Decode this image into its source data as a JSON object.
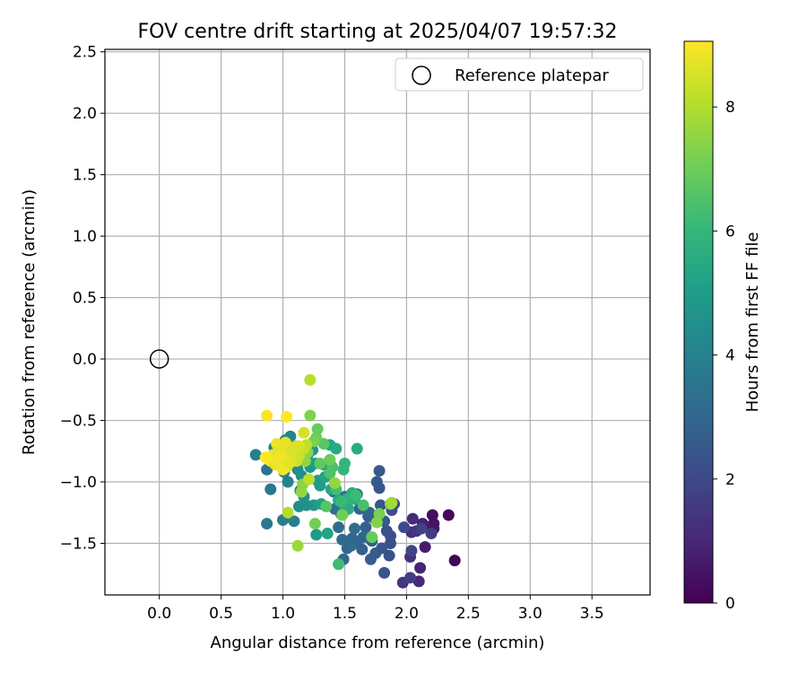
{
  "chart_data": {
    "type": "scatter",
    "title": "FOV centre drift starting at 2025/04/07 19:57:32",
    "xlabel": "Angular distance from reference (arcmin)",
    "ylabel": "Rotation from reference (arcmin)",
    "xlim": [
      -0.44,
      3.97
    ],
    "ylim": [
      -1.92,
      2.52
    ],
    "xticks": [
      0.0,
      0.5,
      1.0,
      1.5,
      2.0,
      2.5,
      3.0,
      3.5
    ],
    "yticks": [
      -1.5,
      -1.0,
      -0.5,
      0.0,
      0.5,
      1.0,
      1.5,
      2.0,
      2.5
    ],
    "xtick_labels": [
      "0.0",
      "0.5",
      "1.0",
      "1.5",
      "2.0",
      "2.5",
      "3.0",
      "3.5"
    ],
    "ytick_labels": [
      "−1.5",
      "−1.0",
      "−0.5",
      "0.0",
      "0.5",
      "1.0",
      "1.5",
      "2.0",
      "2.5"
    ],
    "grid": true,
    "legend": {
      "position": "upper-right",
      "entries": [
        "Reference platepar"
      ]
    },
    "reference_point": {
      "x": 0.0,
      "y": 0.0,
      "label": "Reference platepar"
    },
    "colorbar": {
      "label": "Hours from first FF file",
      "min": 0,
      "max": 9.06,
      "ticks": [
        0,
        2,
        4,
        6,
        8
      ],
      "tick_labels": [
        "0",
        "2",
        "4",
        "6",
        "8"
      ],
      "colormap": "viridis"
    },
    "colormap_stops": [
      "#440154",
      "#482878",
      "#3e4989",
      "#31688e",
      "#26828e",
      "#1f9e89",
      "#35b779",
      "#6ece58",
      "#b5de2b",
      "#fde725"
    ],
    "series": [
      {
        "x": [
          2.39,
          2.34,
          2.21,
          2.22,
          2.22,
          2.15,
          2.15,
          2.13,
          2.11,
          2.1,
          2.05,
          2.04,
          2.03,
          1.97,
          2.08,
          2.2,
          2.03,
          2.12,
          2.04,
          1.98
        ],
        "y": [
          -1.64,
          -1.27,
          -1.27,
          -1.34,
          -1.38,
          -1.36,
          -1.53,
          -1.34,
          -1.7,
          -1.81,
          -1.3,
          -1.41,
          -1.61,
          -1.82,
          -1.4,
          -1.42,
          -1.78,
          -1.38,
          -1.56,
          -1.37
        ],
        "c": [
          0.1,
          0.2,
          0.3,
          0.4,
          0.5,
          0.6,
          0.7,
          0.8,
          0.9,
          1.0,
          1.1,
          1.2,
          1.3,
          1.4,
          1.5,
          1.6,
          1.7,
          1.8,
          1.9,
          2.0
        ]
      },
      {
        "x": [
          1.9,
          1.88,
          1.87,
          1.87,
          1.86,
          1.82,
          1.8,
          1.79,
          1.78,
          1.76,
          1.75,
          1.71,
          1.69,
          1.67,
          1.64,
          1.62,
          1.6,
          1.56,
          1.52,
          1.49,
          1.48,
          1.47,
          1.45,
          1.42,
          1.41,
          1.78,
          1.82,
          1.74,
          1.65,
          1.58,
          1.5,
          1.84,
          1.72,
          1.55,
          1.6,
          1.7
        ],
        "y": [
          -1.18,
          -1.23,
          -1.44,
          -1.5,
          -1.6,
          -1.74,
          -1.54,
          -1.19,
          -0.91,
          -1.0,
          -1.58,
          -1.63,
          -1.28,
          -1.37,
          -1.55,
          -1.22,
          -1.5,
          -1.46,
          -1.54,
          -1.63,
          -1.47,
          -1.26,
          -1.37,
          -1.22,
          -1.08,
          -1.05,
          -1.32,
          -1.3,
          -1.45,
          -1.38,
          -1.12,
          -1.4,
          -1.48,
          -1.52,
          -1.1,
          -1.25
        ],
        "c": [
          2.1,
          2.15,
          2.2,
          2.25,
          2.3,
          2.35,
          2.4,
          2.45,
          2.5,
          2.55,
          2.6,
          2.65,
          2.7,
          2.75,
          2.8,
          2.85,
          2.9,
          2.95,
          3.0,
          3.05,
          3.1,
          3.15,
          3.2,
          3.25,
          3.3,
          2.4,
          2.6,
          2.8,
          3.0,
          3.2,
          3.4,
          2.3,
          2.7,
          3.1,
          3.35,
          2.9
        ]
      },
      {
        "x": [
          0.87,
          0.9,
          0.93,
          0.97,
          1.01,
          1.04,
          1.07,
          1.1,
          1.12,
          1.15,
          1.17,
          1.2,
          1.22,
          1.25,
          1.27,
          1.3,
          1.33,
          1.36,
          0.78,
          0.87,
          1.02,
          1.09,
          1.14,
          1.19,
          1.24,
          1.28,
          1.31,
          1.34,
          1.39,
          1.45,
          1.49,
          1.53,
          1.58,
          1.0,
          1.06,
          1.13,
          1.18,
          1.26,
          1.38,
          1.43
        ],
        "y": [
          -0.9,
          -1.06,
          -0.72,
          -0.81,
          -0.92,
          -1.0,
          -0.73,
          -0.77,
          -0.9,
          -0.95,
          -1.12,
          -0.78,
          -0.88,
          -1.19,
          -1.43,
          -1.03,
          -0.86,
          -1.42,
          -0.78,
          -1.34,
          -0.66,
          -1.32,
          -1.07,
          -1.19,
          -0.74,
          -0.99,
          -1.18,
          -0.96,
          -1.06,
          -1.15,
          -1.25,
          -1.22,
          -1.14,
          -1.31,
          -0.63,
          -1.2,
          -0.82,
          -0.85,
          -0.7,
          -0.73
        ],
        "c": [
          3.5,
          3.6,
          3.7,
          3.8,
          3.9,
          4.0,
          4.1,
          4.2,
          4.3,
          4.4,
          4.5,
          4.6,
          4.7,
          4.8,
          4.9,
          5.0,
          5.1,
          5.2,
          3.9,
          3.6,
          4.05,
          3.95,
          4.35,
          4.55,
          4.75,
          4.95,
          5.15,
          5.25,
          5.35,
          5.45,
          5.55,
          5.65,
          5.75,
          3.85,
          4.15,
          4.45,
          4.65,
          5.05,
          5.3,
          5.5
        ]
      },
      {
        "x": [
          1.6,
          1.56,
          1.52,
          1.5,
          1.49,
          1.47,
          1.45,
          1.43,
          1.4,
          1.38,
          1.35,
          1.33,
          1.3,
          1.28,
          1.27,
          1.26,
          1.25,
          1.22,
          1.2,
          1.18,
          1.15,
          1.12,
          1.1,
          1.07,
          1.04,
          1.78,
          1.76,
          1.72,
          1.87,
          1.88,
          1.59,
          1.65,
          1.38,
          1.42,
          1.48,
          1.16
        ],
        "y": [
          -0.73,
          -1.09,
          -1.14,
          -0.85,
          -0.9,
          -1.16,
          -1.67,
          -1.06,
          -0.88,
          -0.93,
          -1.2,
          -0.69,
          -0.85,
          -0.57,
          -0.64,
          -1.34,
          -0.67,
          -0.46,
          -0.76,
          -0.83,
          -1.08,
          -1.52,
          -0.71,
          -0.79,
          -1.25,
          -1.26,
          -1.33,
          -1.45,
          -1.18,
          -1.17,
          -1.11,
          -1.19,
          -0.82,
          -1.01,
          -1.27,
          -1.02
        ],
        "c": [
          5.6,
          5.7,
          5.8,
          5.9,
          6.0,
          6.1,
          6.2,
          6.3,
          6.4,
          6.5,
          6.6,
          6.7,
          6.8,
          6.9,
          7.0,
          7.1,
          7.2,
          7.3,
          7.4,
          7.5,
          7.6,
          7.7,
          7.8,
          7.9,
          8.0,
          7.2,
          7.35,
          6.9,
          7.5,
          7.8,
          6.15,
          6.4,
          6.95,
          7.6,
          7.05,
          7.45
        ]
      },
      {
        "x": [
          1.22,
          1.21,
          1.19,
          1.17,
          1.15,
          1.13,
          1.11,
          1.09,
          1.07,
          1.05,
          1.03,
          1.01,
          0.99,
          0.97,
          0.95,
          0.92,
          0.9,
          0.88,
          0.87,
          0.86,
          1.17,
          1.1,
          1.03,
          0.96,
          0.94,
          1.0,
          1.06,
          1.13,
          1.02,
          0.98
        ],
        "y": [
          -0.17,
          -0.98,
          -0.7,
          -0.73,
          -0.74,
          -0.79,
          -0.83,
          -0.78,
          -0.76,
          -0.85,
          -0.88,
          -0.8,
          -0.73,
          -0.82,
          -0.69,
          -0.78,
          -0.83,
          -0.81,
          -0.46,
          -0.8,
          -0.6,
          -0.72,
          -0.47,
          -0.75,
          -0.86,
          -0.9,
          -0.84,
          -0.71,
          -0.68,
          -0.8
        ],
        "c": [
          8.1,
          8.15,
          8.2,
          8.25,
          8.3,
          8.35,
          8.4,
          8.45,
          8.5,
          8.55,
          8.6,
          8.65,
          8.7,
          8.75,
          8.8,
          8.85,
          8.9,
          8.95,
          9.0,
          9.02,
          8.5,
          8.6,
          9.04,
          8.7,
          8.8,
          8.9,
          8.65,
          8.55,
          8.75,
          8.85
        ]
      }
    ]
  }
}
